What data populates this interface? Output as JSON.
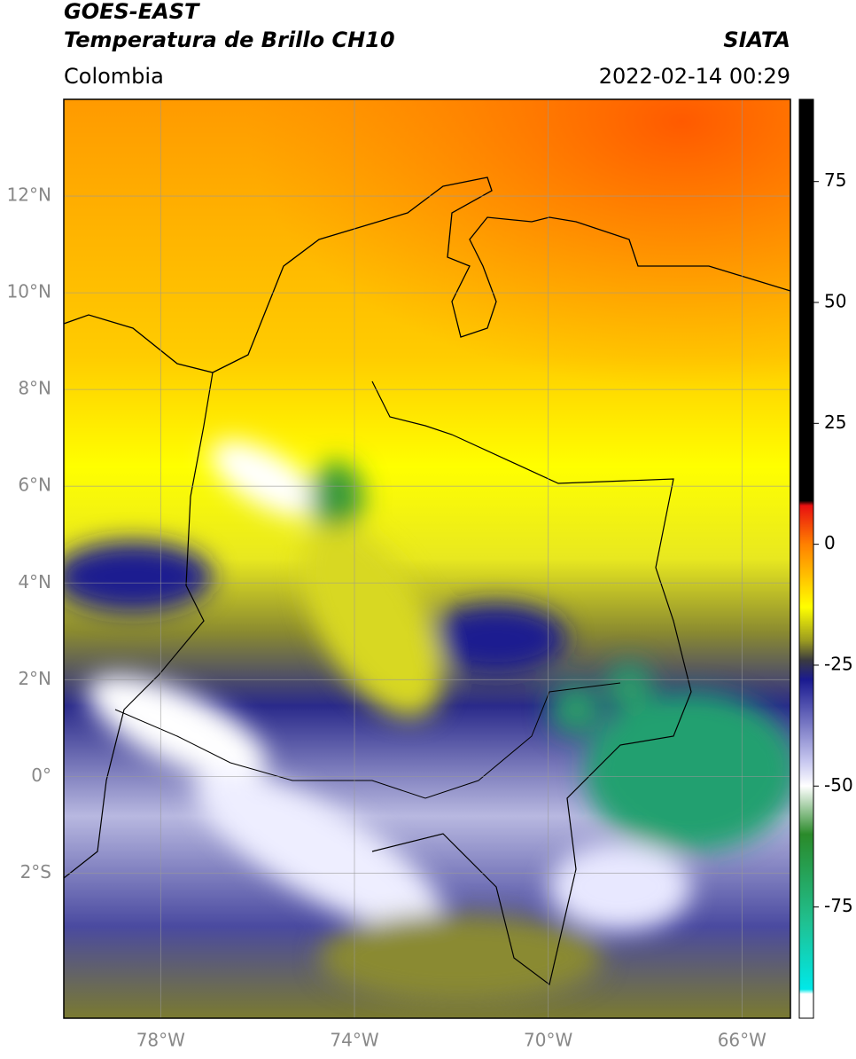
{
  "header": {
    "title": "GOES-EAST",
    "subtitle": "Temperatura de Brillo CH10",
    "source": "SIATA",
    "region": "Colombia",
    "timestamp": "2022-02-14 00:29"
  },
  "map": {
    "xlim": [
      -80,
      -65
    ],
    "ylim": [
      -5,
      14
    ],
    "xticks": [
      {
        "value": -78,
        "label": "78°W"
      },
      {
        "value": -74,
        "label": "74°W"
      },
      {
        "value": -70,
        "label": "70°W"
      },
      {
        "value": -66,
        "label": "66°W"
      }
    ],
    "yticks": [
      {
        "value": 12,
        "label": "12°N"
      },
      {
        "value": 10,
        "label": "10°N"
      },
      {
        "value": 8,
        "label": "8°N"
      },
      {
        "value": 6,
        "label": "6°N"
      },
      {
        "value": 4,
        "label": "4°N"
      },
      {
        "value": 2,
        "label": "2°N"
      },
      {
        "value": 0,
        "label": "0°"
      },
      {
        "value": -2,
        "label": "2°S"
      }
    ],
    "grid": true
  },
  "colorbar": {
    "lim": [
      -98,
      92
    ],
    "ticks": [
      75,
      50,
      25,
      0,
      -25,
      -50,
      -75
    ],
    "colormap": [
      {
        "value": 92,
        "color": "#000000"
      },
      {
        "value": 9,
        "color": "#000000"
      },
      {
        "value": 8,
        "color": "#e81010"
      },
      {
        "value": 0,
        "color": "#ff8000"
      },
      {
        "value": -13,
        "color": "#ffff00"
      },
      {
        "value": -20,
        "color": "#9a9a20"
      },
      {
        "value": -24,
        "color": "#3a3a40"
      },
      {
        "value": -28,
        "color": "#1a1a90"
      },
      {
        "value": -45,
        "color": "#c8c8f0"
      },
      {
        "value": -50,
        "color": "#ffffff"
      },
      {
        "value": -60,
        "color": "#2a8a2a"
      },
      {
        "value": -78,
        "color": "#20c090"
      },
      {
        "value": -92,
        "color": "#00e8e8"
      },
      {
        "value": -93,
        "color": "#ffffff"
      }
    ]
  }
}
